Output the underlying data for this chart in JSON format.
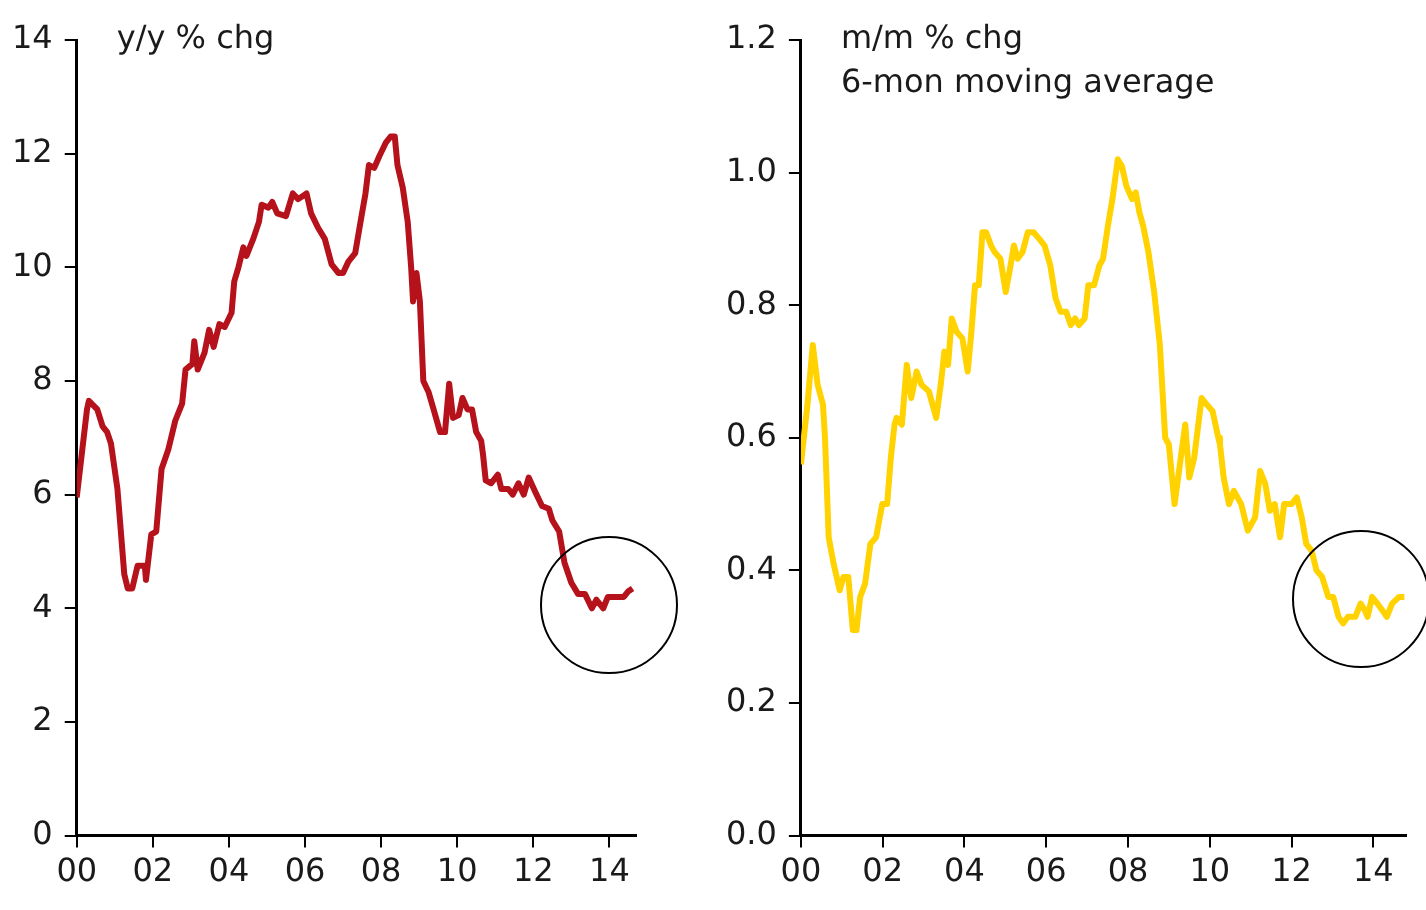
{
  "chart_data": [
    {
      "type": "line",
      "title": "y/y % chg",
      "color": "#b5121b",
      "x": [
        2000.0,
        2000.27,
        2000.32,
        2000.54,
        2000.68,
        2000.8,
        2000.9,
        2001.07,
        2001.25,
        2001.34,
        2001.46,
        2001.6,
        2001.79,
        2001.82,
        2001.96,
        2002.09,
        2002.23,
        2002.41,
        2002.59,
        2002.77,
        2002.86,
        2003.04,
        2003.09,
        2003.18,
        2003.36,
        2003.48,
        2003.6,
        2003.75,
        2003.89,
        2004.07,
        2004.14,
        2004.25,
        2004.38,
        2004.46,
        2004.64,
        2004.79,
        2004.86,
        2005.04,
        2005.14,
        2005.27,
        2005.5,
        2005.68,
        2005.82,
        2006.04,
        2006.16,
        2006.34,
        2006.52,
        2006.7,
        2006.88,
        2007.0,
        2007.14,
        2007.32,
        2007.46,
        2007.59,
        2007.68,
        2007.82,
        2007.95,
        2008.13,
        2008.25,
        2008.36,
        2008.43,
        2008.57,
        2008.7,
        2008.79,
        2008.84,
        2008.93,
        2009.02,
        2009.11,
        2009.25,
        2009.38,
        2009.55,
        2009.68,
        2009.79,
        2009.89,
        2010.04,
        2010.14,
        2010.27,
        2010.39,
        2010.5,
        2010.63,
        2010.68,
        2010.75,
        2010.89,
        2011.07,
        2011.16,
        2011.34,
        2011.46,
        2011.61,
        2011.75,
        2011.88,
        2012.05,
        2012.23,
        2012.41,
        2012.5,
        2012.68,
        2012.82,
        2013.0,
        2013.18,
        2013.36,
        2013.54,
        2013.66,
        2013.84,
        2013.96,
        2014.2,
        2014.38,
        2014.5,
        2014.61
      ],
      "values": [
        5.95,
        7.5,
        7.65,
        7.5,
        7.2,
        7.1,
        6.9,
        6.1,
        4.6,
        4.35,
        4.35,
        4.75,
        4.75,
        4.5,
        5.3,
        5.35,
        6.45,
        6.8,
        7.3,
        7.6,
        8.2,
        8.3,
        8.7,
        8.2,
        8.5,
        8.9,
        8.6,
        9.0,
        8.95,
        9.2,
        9.75,
        10.0,
        10.35,
        10.2,
        10.5,
        10.8,
        11.1,
        11.05,
        11.15,
        10.95,
        10.9,
        11.3,
        11.2,
        11.3,
        10.95,
        10.7,
        10.5,
        10.05,
        9.9,
        9.9,
        10.1,
        10.25,
        10.8,
        11.3,
        11.8,
        11.75,
        11.95,
        12.2,
        12.3,
        12.3,
        11.8,
        11.4,
        10.8,
        10.0,
        9.4,
        9.9,
        9.4,
        8.0,
        7.8,
        7.5,
        7.1,
        7.1,
        7.95,
        7.35,
        7.4,
        7.7,
        7.5,
        7.5,
        7.1,
        6.95,
        6.7,
        6.25,
        6.2,
        6.35,
        6.1,
        6.1,
        6.0,
        6.2,
        6.0,
        6.3,
        6.05,
        5.8,
        5.75,
        5.55,
        5.35,
        4.8,
        4.45,
        4.25,
        4.25,
        4.0,
        4.15,
        4.0,
        4.2,
        4.2,
        4.2,
        4.3,
        4.35
      ],
      "xlim": [
        2000,
        2014.7
      ],
      "xticks": [
        {
          "value": 2000,
          "label": "00"
        },
        {
          "value": 2002,
          "label": "02"
        },
        {
          "value": 2004,
          "label": "04"
        },
        {
          "value": 2006,
          "label": "06"
        },
        {
          "value": 2008,
          "label": "08"
        },
        {
          "value": 2010,
          "label": "10"
        },
        {
          "value": 2012,
          "label": "12"
        },
        {
          "value": 2014,
          "label": "14"
        }
      ],
      "ylim": [
        0,
        14
      ],
      "yticks": [
        0,
        2,
        4,
        6,
        8,
        10,
        12,
        14
      ]
    },
    {
      "type": "line",
      "title": "m/m % chg",
      "subtitle": "6-mon moving average",
      "color": "#ffd200",
      "x": [
        2000.0,
        2000.16,
        2000.29,
        2000.41,
        2000.54,
        2000.59,
        2000.68,
        2000.8,
        2000.95,
        2001.04,
        2001.16,
        2001.27,
        2001.36,
        2001.45,
        2001.57,
        2001.7,
        2001.84,
        2001.99,
        2002.11,
        2002.2,
        2002.29,
        2002.34,
        2002.47,
        2002.59,
        2002.7,
        2002.83,
        2002.95,
        2003.13,
        2003.31,
        2003.42,
        2003.51,
        2003.6,
        2003.69,
        2003.81,
        2003.95,
        2004.08,
        2004.17,
        2004.26,
        2004.35,
        2004.44,
        2004.53,
        2004.65,
        2004.74,
        2004.88,
        2005.01,
        2005.1,
        2005.21,
        2005.3,
        2005.42,
        2005.55,
        2005.69,
        2005.83,
        2005.96,
        2006.1,
        2006.23,
        2006.35,
        2006.49,
        2006.6,
        2006.71,
        2006.8,
        2006.94,
        2007.03,
        2007.17,
        2007.3,
        2007.39,
        2007.51,
        2007.62,
        2007.75,
        2007.85,
        2007.96,
        2008.1,
        2008.19,
        2008.28,
        2008.37,
        2008.5,
        2008.64,
        2008.78,
        2008.91,
        2009.0,
        2009.14,
        2009.27,
        2009.4,
        2009.5,
        2009.62,
        2009.8,
        2009.93,
        2010.07,
        2010.21,
        2010.25,
        2010.34,
        2010.47,
        2010.59,
        2010.77,
        2010.93,
        2011.11,
        2011.23,
        2011.36,
        2011.47,
        2011.59,
        2011.72,
        2011.82,
        2012.0,
        2012.13,
        2012.25,
        2012.36,
        2012.49,
        2012.61,
        2012.75,
        2012.9,
        2013.02,
        2013.15,
        2013.26,
        2013.38,
        2013.56,
        2013.69,
        2013.79,
        2013.86,
        2013.97,
        2014.1,
        2014.22,
        2014.33,
        2014.46,
        2014.63,
        2014.76
      ],
      "values": [
        0.56,
        0.65,
        0.74,
        0.68,
        0.65,
        0.6,
        0.45,
        0.41,
        0.37,
        0.39,
        0.39,
        0.31,
        0.31,
        0.36,
        0.38,
        0.44,
        0.45,
        0.5,
        0.5,
        0.57,
        0.62,
        0.63,
        0.62,
        0.71,
        0.66,
        0.7,
        0.68,
        0.67,
        0.63,
        0.68,
        0.73,
        0.71,
        0.78,
        0.76,
        0.75,
        0.7,
        0.76,
        0.83,
        0.83,
        0.91,
        0.91,
        0.89,
        0.88,
        0.87,
        0.82,
        0.85,
        0.89,
        0.87,
        0.88,
        0.91,
        0.91,
        0.9,
        0.89,
        0.86,
        0.81,
        0.79,
        0.79,
        0.77,
        0.78,
        0.77,
        0.78,
        0.83,
        0.83,
        0.86,
        0.87,
        0.92,
        0.96,
        1.02,
        1.01,
        0.98,
        0.96,
        0.97,
        0.94,
        0.92,
        0.88,
        0.82,
        0.74,
        0.6,
        0.59,
        0.5,
        0.56,
        0.62,
        0.54,
        0.57,
        0.66,
        0.65,
        0.64,
        0.6,
        0.59,
        0.54,
        0.5,
        0.52,
        0.5,
        0.46,
        0.48,
        0.55,
        0.53,
        0.49,
        0.5,
        0.45,
        0.5,
        0.5,
        0.51,
        0.48,
        0.44,
        0.43,
        0.4,
        0.39,
        0.36,
        0.36,
        0.33,
        0.32,
        0.33,
        0.33,
        0.35,
        0.34,
        0.33,
        0.36,
        0.35,
        0.34,
        0.33,
        0.35,
        0.36,
        0.36
      ],
      "xlim": [
        2000,
        2014.8
      ],
      "xticks": [
        {
          "value": 2000,
          "label": "00"
        },
        {
          "value": 2002,
          "label": "02"
        },
        {
          "value": 2004,
          "label": "04"
        },
        {
          "value": 2006,
          "label": "06"
        },
        {
          "value": 2008,
          "label": "08"
        },
        {
          "value": 2010,
          "label": "10"
        },
        {
          "value": 2012,
          "label": "12"
        },
        {
          "value": 2014,
          "label": "14"
        }
      ],
      "ylim": [
        0,
        1.2
      ],
      "yticks": [
        {
          "value": 0,
          "label": "0.0"
        },
        {
          "value": 0.2,
          "label": "0.2"
        },
        {
          "value": 0.4,
          "label": "0.4"
        },
        {
          "value": 0.6,
          "label": "0.6"
        },
        {
          "value": 0.8,
          "label": "0.8"
        },
        {
          "value": 1,
          "label": "1.0"
        },
        {
          "value": 1.2,
          "label": "1.2"
        }
      ]
    }
  ]
}
